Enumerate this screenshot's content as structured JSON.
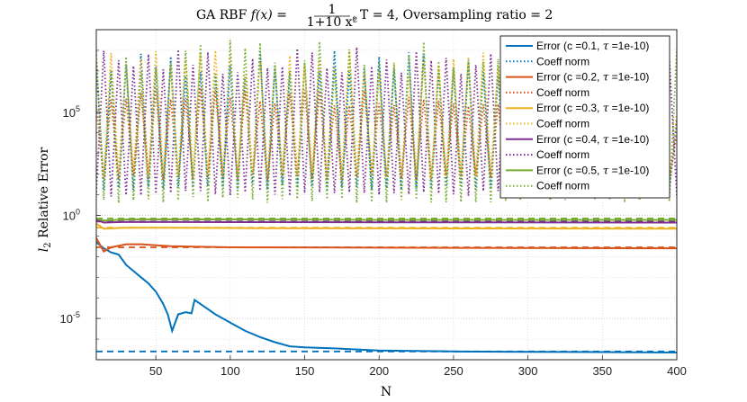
{
  "chart_data": {
    "type": "line",
    "title": "GA RBF f(x) = 1/(1+10 x²), T = 4, Oversampling ratio = 2",
    "title_parts": {
      "prefix": "GA RBF ",
      "fx": "f(x) = ",
      "numer": "1",
      "denom": "1+10 x²",
      "suffix": ", T = 4, Oversampling ratio = 2"
    },
    "xlabel": "N",
    "ylabel": "l₂ Relative Error",
    "ylabel_parts": {
      "main": "l",
      "sub": "2",
      "rest": " Relative Error"
    },
    "xlim": [
      10,
      400
    ],
    "ylim_log10": [
      -7,
      9
    ],
    "x_ticks": [
      50,
      100,
      150,
      200,
      250,
      300,
      350,
      400
    ],
    "y_ticks": [
      {
        "exp": 5,
        "base": "10",
        "sup": "5"
      },
      {
        "exp": 0,
        "base": "10",
        "sup": "0"
      },
      {
        "exp": -5,
        "base": "10",
        "sup": "-5"
      }
    ],
    "grid": true,
    "legend_position": "top-right",
    "series": [
      {
        "name": "Error (c =0.1, τ =1e-10)",
        "color": "#0072BD",
        "style": "solid",
        "points": [
          [
            10,
            -1.3
          ],
          [
            15,
            -1.6
          ],
          [
            20,
            -1.8
          ],
          [
            25,
            -1.9
          ],
          [
            30,
            -2.4
          ],
          [
            35,
            -2.7
          ],
          [
            40,
            -3.0
          ],
          [
            45,
            -3.3
          ],
          [
            50,
            -3.7
          ],
          [
            55,
            -4.3
          ],
          [
            58,
            -4.8
          ],
          [
            61,
            -5.6
          ],
          [
            65,
            -4.8
          ],
          [
            70,
            -4.7
          ],
          [
            74,
            -4.75
          ],
          [
            76,
            -4.1
          ],
          [
            80,
            -4.3
          ],
          [
            90,
            -4.8
          ],
          [
            100,
            -5.2
          ],
          [
            110,
            -5.6
          ],
          [
            120,
            -5.9
          ],
          [
            130,
            -6.15
          ],
          [
            140,
            -6.35
          ],
          [
            150,
            -6.4
          ],
          [
            170,
            -6.45
          ],
          [
            200,
            -6.55
          ],
          [
            250,
            -6.6
          ],
          [
            300,
            -6.62
          ],
          [
            350,
            -6.63
          ],
          [
            400,
            -6.65
          ]
        ]
      },
      {
        "name": "Coeff norm",
        "color": "#0072BD",
        "style": "dotted",
        "profile": "osc",
        "base": 1.2,
        "amp": 6.8
      },
      {
        "name": "Error (c =0.2, τ =1e-10)",
        "color": "#D95319",
        "style": "solid",
        "points": [
          [
            10,
            -1.1
          ],
          [
            15,
            -1.75
          ],
          [
            20,
            -1.55
          ],
          [
            30,
            -1.4
          ],
          [
            40,
            -1.4
          ],
          [
            60,
            -1.5
          ],
          [
            100,
            -1.55
          ],
          [
            200,
            -1.57
          ],
          [
            400,
            -1.6
          ]
        ]
      },
      {
        "name": "Coeff norm",
        "color": "#D95319",
        "style": "dotted",
        "profile": "osc",
        "base": 1.7,
        "amp": 4.5
      },
      {
        "name": "Error (c =0.3, τ =1e-10)",
        "color": "#EDB120",
        "style": "solid",
        "points": [
          [
            10,
            -0.4
          ],
          [
            15,
            -0.65
          ],
          [
            30,
            -0.6
          ],
          [
            60,
            -0.6
          ],
          [
            120,
            -0.62
          ],
          [
            200,
            -0.63
          ],
          [
            400,
            -0.65
          ]
        ]
      },
      {
        "name": "Coeff norm",
        "color": "#EDB120",
        "style": "dotted",
        "profile": "osc",
        "base": 1.8,
        "amp": 6.2
      },
      {
        "name": "Error (c =0.4, τ =1e-10)",
        "color": "#7E2F8E",
        "style": "solid",
        "points": [
          [
            10,
            -0.2
          ],
          [
            15,
            -0.35
          ],
          [
            30,
            -0.32
          ],
          [
            100,
            -0.33
          ],
          [
            200,
            -0.34
          ],
          [
            400,
            -0.35
          ]
        ]
      },
      {
        "name": "Coeff norm",
        "color": "#7E2F8E",
        "style": "dotted",
        "profile": "osc",
        "base": 0.9,
        "amp": 7.3
      },
      {
        "name": "Error (c =0.5, τ =1e-10)",
        "color": "#77AC30",
        "style": "solid",
        "points": [
          [
            10,
            -0.15
          ],
          [
            15,
            -0.25
          ],
          [
            30,
            -0.2
          ],
          [
            100,
            -0.2
          ],
          [
            200,
            -0.22
          ],
          [
            400,
            -0.22
          ]
        ]
      },
      {
        "name": "Coeff norm",
        "color": "#77AC30",
        "style": "dotted",
        "profile": "osc",
        "base": 0.6,
        "amp": 7.9
      }
    ],
    "reference_lines": [
      {
        "color": "#0072BD",
        "value_log10": -6.6
      },
      {
        "color": "#D95319",
        "value_log10": -1.55
      },
      {
        "color": "#EDB120",
        "value_log10": -0.6
      },
      {
        "color": "#7E2F8E",
        "value_log10": -0.3
      },
      {
        "color": "#77AC30",
        "value_log10": -0.15
      }
    ],
    "legend": [
      {
        "label": "Error (c =0.1, ",
        "tau": "τ",
        "tail": " =1e-10)",
        "color": "#0072BD",
        "style": "solid"
      },
      {
        "label": "Coeff norm",
        "color": "#0072BD",
        "style": "dotted"
      },
      {
        "label": "Error (c =0.2, ",
        "tau": "τ",
        "tail": " =1e-10)",
        "color": "#D95319",
        "style": "solid"
      },
      {
        "label": "Coeff norm",
        "color": "#D95319",
        "style": "dotted"
      },
      {
        "label": "Error (c =0.3, ",
        "tau": "τ",
        "tail": " =1e-10)",
        "color": "#EDB120",
        "style": "solid"
      },
      {
        "label": "Coeff norm",
        "color": "#EDB120",
        "style": "dotted"
      },
      {
        "label": "Error (c =0.4, ",
        "tau": "τ",
        "tail": " =1e-10)",
        "color": "#7E2F8E",
        "style": "solid"
      },
      {
        "label": "Coeff norm",
        "color": "#7E2F8E",
        "style": "dotted"
      },
      {
        "label": "Error (c =0.5, ",
        "tau": "τ",
        "tail": " =1e-10)",
        "color": "#77AC30",
        "style": "solid"
      },
      {
        "label": "Coeff norm",
        "color": "#77AC30",
        "style": "dotted"
      }
    ]
  }
}
